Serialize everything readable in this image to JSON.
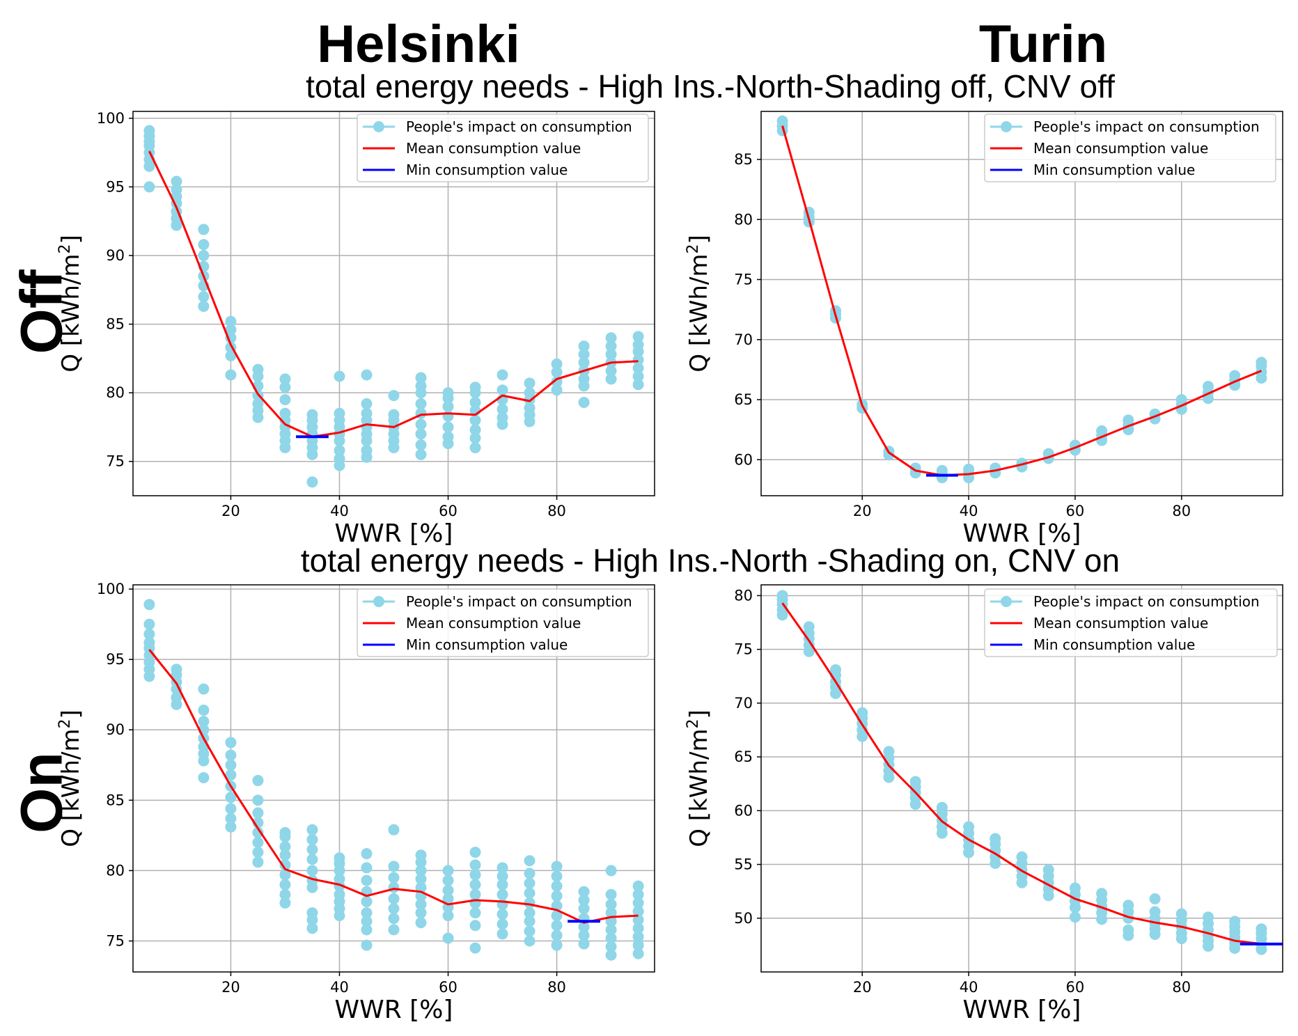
{
  "column_titles": [
    "Helsinki",
    "Turin"
  ],
  "row_labels": [
    "Off",
    "On"
  ],
  "row_titles": [
    "total energy needs - High Ins.-North-Shading off, CNV off",
    "total energy needs - High Ins.-North -Shading on, CNV on"
  ],
  "legend": {
    "people": "People's impact on consumption",
    "mean": "Mean consumption value",
    "min": "Min consumption value"
  },
  "axis": {
    "xlabel": "WWR [%]",
    "ylabel_prefix": "Q [kWh/m",
    "ylabel_sup": "2",
    "ylabel_suffix": "]"
  },
  "colors": {
    "people": "#8fd6e8",
    "mean": "#ff0000",
    "min": "#0000ff",
    "grid": "#b0b0b0"
  },
  "chart_data": [
    {
      "type": "scatter",
      "city": "Helsinki",
      "case": "Off",
      "xlabel": "WWR [%]",
      "ylabel": "Q [kWh/m2]",
      "xlim": [
        2,
        98
      ],
      "ylim": [
        72.5,
        100.5
      ],
      "xticks": [
        20,
        40,
        60,
        80
      ],
      "yticks": [
        75,
        80,
        85,
        90,
        95,
        100
      ],
      "scatter": [
        {
          "x": 5,
          "y": [
            95,
            96.5,
            97,
            97.5,
            98,
            98.3,
            98.7,
            99.1
          ]
        },
        {
          "x": 10,
          "y": [
            92.2,
            92.7,
            93.2,
            93.8,
            94.3,
            94.8,
            95.4
          ]
        },
        {
          "x": 15,
          "y": [
            86.3,
            87,
            87.8,
            88.5,
            89.2,
            90,
            90.8,
            91.9
          ]
        },
        {
          "x": 20,
          "y": [
            81.3,
            82.7,
            83.3,
            84,
            84.6,
            85.2
          ]
        },
        {
          "x": 25,
          "y": [
            78.2,
            78.7,
            79.2,
            79.8,
            80.5,
            81.2,
            81.7
          ]
        },
        {
          "x": 30,
          "y": [
            76,
            76.5,
            77,
            77.5,
            78,
            78.5,
            79.5,
            80.4,
            81
          ]
        },
        {
          "x": 35,
          "y": [
            73.5,
            75.5,
            76,
            76.5,
            77,
            77.5,
            78,
            78.4
          ]
        },
        {
          "x": 40,
          "y": [
            74.7,
            75.2,
            75.8,
            76.5,
            77,
            77.5,
            78,
            78.5,
            81.2
          ]
        },
        {
          "x": 45,
          "y": [
            75.3,
            75.8,
            76.5,
            77,
            77.5,
            78,
            78.5,
            79.2,
            81.3
          ]
        },
        {
          "x": 50,
          "y": [
            76,
            76.5,
            77,
            77.5,
            78,
            78.4,
            79.8
          ]
        },
        {
          "x": 55,
          "y": [
            75.5,
            76.2,
            77,
            77.7,
            78.5,
            79.2,
            80,
            80.5,
            81.1
          ]
        },
        {
          "x": 60,
          "y": [
            76.3,
            76.8,
            77.5,
            78.3,
            79,
            79.6,
            80
          ]
        },
        {
          "x": 65,
          "y": [
            76,
            76.7,
            77.3,
            78,
            78.7,
            79.3,
            80,
            80.4
          ]
        },
        {
          "x": 70,
          "y": [
            77.7,
            78.2,
            78.8,
            79.5,
            80.2,
            81.3
          ]
        },
        {
          "x": 75,
          "y": [
            77.9,
            78.4,
            78.9,
            79.5,
            80,
            80.7
          ]
        },
        {
          "x": 80,
          "y": [
            80.2,
            80.8,
            81.5,
            82.1
          ]
        },
        {
          "x": 85,
          "y": [
            79.3,
            80.5,
            81,
            81.6,
            82.2,
            82.8,
            83.4
          ]
        },
        {
          "x": 90,
          "y": [
            81,
            81.6,
            82.2,
            82.8,
            83.4,
            84
          ]
        },
        {
          "x": 95,
          "y": [
            80.6,
            81.2,
            81.8,
            82.4,
            83,
            83.5,
            84.1
          ]
        }
      ],
      "mean": {
        "x": [
          5,
          10,
          15,
          20,
          25,
          30,
          35,
          40,
          45,
          50,
          55,
          60,
          65,
          70,
          75,
          80,
          85,
          90,
          95
        ],
        "y": [
          97.6,
          93.5,
          88.5,
          83.5,
          79.9,
          77.7,
          76.8,
          77.1,
          77.7,
          77.5,
          78.4,
          78.5,
          78.4,
          79.8,
          79.4,
          81.0,
          81.6,
          82.2,
          82.3
        ]
      },
      "min": {
        "x": [
          32,
          38
        ],
        "y": 76.8
      }
    },
    {
      "type": "scatter",
      "city": "Turin",
      "case": "Off",
      "xlabel": "WWR [%]",
      "ylabel": "Q [kWh/m2]",
      "xlim": [
        1,
        99
      ],
      "ylim": [
        57,
        89
      ],
      "xticks": [
        20,
        40,
        60,
        80
      ],
      "yticks": [
        60,
        65,
        70,
        75,
        80,
        85
      ],
      "scatter": [
        {
          "x": 5,
          "y": [
            87.4,
            87.8,
            88.2
          ]
        },
        {
          "x": 10,
          "y": [
            79.8,
            80.2,
            80.6
          ]
        },
        {
          "x": 15,
          "y": [
            71.8,
            72.1,
            72.4
          ]
        },
        {
          "x": 20,
          "y": [
            64.3,
            64.6
          ]
        },
        {
          "x": 25,
          "y": [
            60.4,
            60.7
          ]
        },
        {
          "x": 30,
          "y": [
            58.9,
            59.3
          ]
        },
        {
          "x": 35,
          "y": [
            58.5,
            58.8,
            59.1
          ]
        },
        {
          "x": 40,
          "y": [
            58.5,
            58.9,
            59.2
          ]
        },
        {
          "x": 45,
          "y": [
            58.9,
            59.3
          ]
        },
        {
          "x": 50,
          "y": [
            59.4,
            59.7
          ]
        },
        {
          "x": 55,
          "y": [
            60.1,
            60.5
          ]
        },
        {
          "x": 60,
          "y": [
            60.8,
            61.2
          ]
        },
        {
          "x": 65,
          "y": [
            61.6,
            62,
            62.4
          ]
        },
        {
          "x": 70,
          "y": [
            62.5,
            62.9,
            63.3
          ]
        },
        {
          "x": 75,
          "y": [
            63.4,
            63.8
          ]
        },
        {
          "x": 80,
          "y": [
            64.2,
            64.6,
            65
          ]
        },
        {
          "x": 85,
          "y": [
            65.1,
            65.6,
            66.1
          ]
        },
        {
          "x": 90,
          "y": [
            66.2,
            66.6,
            67
          ]
        },
        {
          "x": 95,
          "y": [
            66.8,
            67.3,
            67.8,
            68.1
          ]
        }
      ],
      "mean": {
        "x": [
          5,
          10,
          15,
          20,
          25,
          30,
          35,
          40,
          45,
          50,
          55,
          60,
          65,
          70,
          75,
          80,
          85,
          90,
          95
        ],
        "y": [
          87.8,
          80.0,
          72.0,
          64.5,
          60.6,
          59.1,
          58.7,
          58.8,
          59.1,
          59.6,
          60.2,
          61.0,
          61.9,
          62.8,
          63.6,
          64.5,
          65.5,
          66.5,
          67.4
        ]
      },
      "min": {
        "x": [
          32,
          38
        ],
        "y": 58.7
      }
    },
    {
      "type": "scatter",
      "city": "Helsinki",
      "case": "On",
      "xlabel": "WWR [%]",
      "ylabel": "Q [kWh/m2]",
      "xlim": [
        2,
        98
      ],
      "ylim": [
        72.8,
        100.3
      ],
      "xticks": [
        20,
        40,
        60,
        80
      ],
      "yticks": [
        75,
        80,
        85,
        90,
        95,
        100
      ],
      "scatter": [
        {
          "x": 5,
          "y": [
            93.8,
            94.3,
            94.8,
            95.3,
            95.8,
            96.2,
            96.8,
            97.5,
            98.9
          ]
        },
        {
          "x": 10,
          "y": [
            91.8,
            92.3,
            92.9,
            93.4,
            93.9,
            94.3
          ]
        },
        {
          "x": 15,
          "y": [
            86.6,
            87.8,
            88.3,
            88.8,
            89.4,
            90,
            90.6,
            91.4,
            92.9
          ]
        },
        {
          "x": 20,
          "y": [
            83.1,
            83.7,
            84.4,
            85.2,
            86,
            86.8,
            87.5,
            88.2,
            89.1
          ]
        },
        {
          "x": 25,
          "y": [
            80.6,
            81.3,
            82,
            82.7,
            83.4,
            84.1,
            85,
            86.4
          ]
        },
        {
          "x": 30,
          "y": [
            77.7,
            78.3,
            79,
            79.7,
            80.4,
            81.1,
            81.7,
            82.4,
            82.7
          ]
        },
        {
          "x": 35,
          "y": [
            75.9,
            76.5,
            77,
            78.8,
            79.3,
            80,
            80.8,
            81.5,
            82.2,
            82.9
          ]
        },
        {
          "x": 40,
          "y": [
            76.8,
            77.3,
            77.8,
            78.3,
            78.9,
            79.4,
            80,
            80.5,
            80.9
          ]
        },
        {
          "x": 45,
          "y": [
            74.7,
            75.8,
            76.4,
            77,
            77.8,
            78.5,
            79.3,
            80.2,
            81.2
          ]
        },
        {
          "x": 50,
          "y": [
            75.8,
            76.6,
            77.3,
            78,
            78.8,
            79.5,
            80.3,
            82.9
          ]
        },
        {
          "x": 55,
          "y": [
            76.3,
            77,
            77.6,
            78.2,
            78.8,
            79.4,
            80,
            80.6,
            81.1
          ]
        },
        {
          "x": 60,
          "y": [
            75.2,
            76.8,
            77.4,
            78,
            78.6,
            79.3,
            80
          ]
        },
        {
          "x": 65,
          "y": [
            74.5,
            76.1,
            77,
            77.7,
            78.3,
            79,
            79.7,
            80.4,
            81.3
          ]
        },
        {
          "x": 70,
          "y": [
            75.5,
            76.2,
            76.9,
            77.6,
            78.3,
            79,
            79.6,
            80.2
          ]
        },
        {
          "x": 75,
          "y": [
            75,
            75.7,
            76.4,
            77,
            77.7,
            78.4,
            79.1,
            79.8,
            80.7
          ]
        },
        {
          "x": 80,
          "y": [
            74.7,
            75.4,
            76.1,
            76.8,
            77.5,
            78.2,
            78.9,
            79.6,
            80.3
          ]
        },
        {
          "x": 85,
          "y": [
            74.8,
            75.4,
            76,
            76.6,
            77.3,
            77.9,
            78.5
          ]
        },
        {
          "x": 90,
          "y": [
            74,
            74.6,
            75.2,
            75.8,
            76.4,
            77,
            77.6,
            78.3,
            80
          ]
        },
        {
          "x": 95,
          "y": [
            74.1,
            74.7,
            75.3,
            75.9,
            76.5,
            77.1,
            77.7,
            78.3,
            78.9
          ]
        }
      ],
      "mean": {
        "x": [
          5,
          10,
          15,
          20,
          25,
          30,
          35,
          40,
          45,
          50,
          55,
          60,
          65,
          70,
          75,
          80,
          85,
          90,
          95
        ],
        "y": [
          95.7,
          93.3,
          89.4,
          86.0,
          83.0,
          80.1,
          79.4,
          79.0,
          78.2,
          78.7,
          78.5,
          77.6,
          77.9,
          77.8,
          77.6,
          77.2,
          76.3,
          76.7,
          76.8
        ]
      },
      "min": {
        "x": [
          82,
          88
        ],
        "y": 76.4
      }
    },
    {
      "type": "scatter",
      "city": "Turin",
      "case": "On",
      "xlabel": "WWR [%]",
      "ylabel": "Q [kWh/m2]",
      "xlim": [
        1,
        99
      ],
      "ylim": [
        45,
        81
      ],
      "xticks": [
        20,
        40,
        60,
        80
      ],
      "yticks": [
        50,
        55,
        60,
        65,
        70,
        75,
        80
      ],
      "scatter": [
        {
          "x": 5,
          "y": [
            78.2,
            78.7,
            79.2,
            79.6,
            80
          ]
        },
        {
          "x": 10,
          "y": [
            74.8,
            75.4,
            76,
            76.5,
            77.1
          ]
        },
        {
          "x": 15,
          "y": [
            70.9,
            71.5,
            72,
            72.6,
            73.1
          ]
        },
        {
          "x": 20,
          "y": [
            66.9,
            67.5,
            68.1,
            68.6,
            69.1
          ]
        },
        {
          "x": 25,
          "y": [
            63.1,
            63.7,
            64.3,
            64.9,
            65.5
          ]
        },
        {
          "x": 30,
          "y": [
            60.6,
            61.2,
            61.7,
            62.2,
            62.7
          ]
        },
        {
          "x": 35,
          "y": [
            57.9,
            58.5,
            59.1,
            59.7,
            60.3
          ]
        },
        {
          "x": 40,
          "y": [
            56.1,
            56.7,
            57.3,
            57.9,
            58.5
          ]
        },
        {
          "x": 45,
          "y": [
            55.1,
            55.7,
            56.3,
            56.9,
            57.4
          ]
        },
        {
          "x": 50,
          "y": [
            53.3,
            53.9,
            54.5,
            55.1,
            55.7
          ]
        },
        {
          "x": 55,
          "y": [
            52.1,
            52.7,
            53.3,
            53.9,
            54.5
          ]
        },
        {
          "x": 60,
          "y": [
            50.1,
            51,
            51.6,
            52.2,
            52.8
          ]
        },
        {
          "x": 65,
          "y": [
            49.9,
            50.5,
            51.1,
            51.7,
            52.3
          ]
        },
        {
          "x": 70,
          "y": [
            48.4,
            48.9,
            50,
            50.6,
            51.2
          ]
        },
        {
          "x": 75,
          "y": [
            48.5,
            49,
            49.5,
            50,
            50.6,
            51.8
          ]
        },
        {
          "x": 80,
          "y": [
            48.1,
            48.6,
            49.2,
            49.8,
            50.4
          ]
        },
        {
          "x": 85,
          "y": [
            47.4,
            47.9,
            48.4,
            48.9,
            49.5,
            50.1
          ]
        },
        {
          "x": 90,
          "y": [
            47.2,
            47.7,
            48.2,
            48.7,
            49.2,
            49.7
          ]
        },
        {
          "x": 95,
          "y": [
            47.1,
            47.6,
            48.1,
            48.6,
            49
          ]
        }
      ],
      "mean": {
        "x": [
          5,
          10,
          15,
          20,
          25,
          30,
          35,
          40,
          45,
          50,
          55,
          60,
          65,
          70,
          75,
          80,
          85,
          90,
          95
        ],
        "y": [
          79.3,
          75.8,
          72.0,
          68.0,
          64.2,
          61.7,
          59.0,
          57.3,
          56.0,
          54.4,
          53.1,
          51.8,
          51.0,
          50.1,
          49.6,
          49.2,
          48.6,
          47.9,
          47.6
        ]
      },
      "min": {
        "x": [
          91,
          99
        ],
        "y": 47.6
      }
    }
  ]
}
